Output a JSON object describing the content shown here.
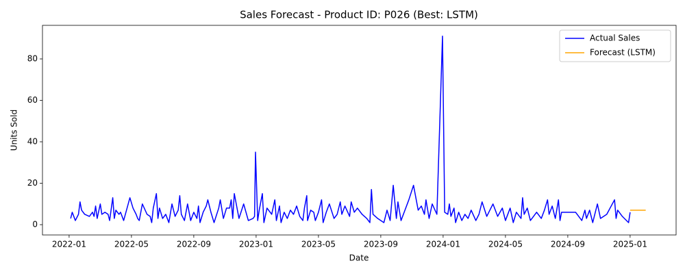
{
  "chart_data": {
    "type": "line",
    "title": "Sales Forecast - Product ID: P026 (Best: LSTM)",
    "xlabel": "Date",
    "ylabel": "Units Sold",
    "xlim": [
      -1.71,
      38.95
    ],
    "ylim": [
      -4.96,
      96.2
    ],
    "xticks": [
      {
        "value": 0,
        "label": "2022-01"
      },
      {
        "value": 4,
        "label": "2022-05"
      },
      {
        "value": 8,
        "label": "2022-09"
      },
      {
        "value": 12,
        "label": "2023-01"
      },
      {
        "value": 16,
        "label": "2023-05"
      },
      {
        "value": 20,
        "label": "2023-09"
      },
      {
        "value": 24,
        "label": "2024-01"
      },
      {
        "value": 28,
        "label": "2024-05"
      },
      {
        "value": 32,
        "label": "2024-09"
      },
      {
        "value": 36,
        "label": "2025-01"
      }
    ],
    "yticks": [
      0,
      20,
      40,
      60,
      80
    ],
    "legend": "upper right",
    "series": [
      {
        "name": "Actual Sales",
        "color": "#0000ff",
        "x": [
          0.1,
          0.2,
          0.4,
          0.6,
          0.7,
          0.8,
          1.0,
          1.3,
          1.5,
          1.6,
          1.7,
          1.8,
          2.0,
          2.1,
          2.3,
          2.5,
          2.6,
          2.8,
          2.9,
          3.0,
          3.2,
          3.3,
          3.5,
          3.9,
          4.1,
          4.3,
          4.4,
          4.5,
          4.7,
          5.0,
          5.2,
          5.3,
          5.4,
          5.6,
          5.7,
          5.8,
          6.0,
          6.2,
          6.4,
          6.6,
          6.8,
          7.0,
          7.1,
          7.2,
          7.4,
          7.6,
          7.8,
          8.0,
          8.2,
          8.3,
          8.4,
          8.6,
          8.8,
          8.9,
          9.1,
          9.3,
          9.6,
          9.7,
          9.9,
          10.1,
          10.3,
          10.4,
          10.5,
          10.6,
          10.9,
          11.2,
          11.5,
          11.8,
          11.9,
          11.96,
          12.1,
          12.2,
          12.4,
          12.5,
          12.7,
          13.0,
          13.2,
          13.3,
          13.5,
          13.6,
          13.8,
          14.0,
          14.2,
          14.4,
          14.6,
          14.8,
          15.0,
          15.1,
          15.25,
          15.3,
          15.5,
          15.7,
          15.8,
          16.0,
          16.2,
          16.3,
          16.5,
          16.7,
          17.0,
          17.2,
          17.4,
          17.5,
          17.7,
          18.0,
          18.1,
          18.3,
          18.5,
          18.8,
          19.1,
          19.3,
          19.4,
          19.5,
          19.8,
          20.2,
          20.4,
          20.6,
          20.8,
          21.0,
          21.1,
          21.3,
          21.5,
          21.8,
          22.1,
          22.4,
          22.6,
          22.8,
          22.9,
          23.1,
          23.3,
          23.6,
          23.96,
          24.1,
          24.3,
          24.4,
          24.5,
          24.7,
          24.8,
          25.0,
          25.2,
          25.4,
          25.6,
          25.8,
          26.1,
          26.3,
          26.5,
          26.8,
          27.0,
          27.2,
          27.5,
          27.8,
          28.0,
          28.3,
          28.5,
          28.7,
          29.0,
          29.1,
          29.2,
          29.4,
          29.6,
          29.8,
          30.0,
          30.3,
          30.5,
          30.7,
          30.8,
          31.0,
          31.2,
          31.4,
          31.5,
          31.6,
          31.8,
          32.5,
          32.9,
          33.1,
          33.2,
          33.4,
          33.6,
          33.9,
          34.1,
          34.5,
          35.0,
          35.1,
          35.2,
          35.5,
          35.9,
          36.0
        ],
        "values": [
          3,
          6,
          2,
          5,
          11,
          7,
          5,
          4,
          6,
          4,
          9,
          3,
          10,
          5,
          6,
          5,
          2,
          13,
          3,
          7,
          5,
          6,
          2,
          13,
          8,
          5,
          3,
          2,
          10,
          5,
          4,
          1,
          8,
          15,
          3,
          8,
          3,
          5,
          1,
          10,
          4,
          7,
          14,
          5,
          2,
          10,
          2,
          6,
          3,
          9,
          1,
          6,
          9,
          12,
          6,
          1,
          8,
          12,
          3,
          8,
          8,
          12,
          3,
          15,
          3,
          10,
          2,
          3,
          4,
          35,
          2,
          7,
          15,
          1,
          8,
          5,
          12,
          2,
          9,
          1,
          6,
          3,
          7,
          5,
          9,
          4,
          2,
          8,
          14,
          2,
          7,
          6,
          2,
          6,
          12,
          1,
          6,
          10,
          3,
          5,
          11,
          5,
          9,
          4,
          11,
          6,
          8,
          5,
          3,
          1,
          17,
          5,
          3,
          1,
          7,
          2,
          19,
          3,
          11,
          2,
          6,
          12,
          19,
          7,
          9,
          5,
          12,
          3,
          10,
          5,
          91,
          6,
          5,
          10,
          4,
          8,
          1,
          6,
          2,
          5,
          3,
          7,
          2,
          5,
          11,
          4,
          7,
          10,
          4,
          8,
          2,
          8,
          1,
          6,
          3,
          13,
          5,
          8,
          2,
          4,
          6,
          3,
          7,
          12,
          5,
          9,
          3,
          12,
          2,
          6,
          6,
          6,
          2,
          7,
          3,
          7,
          1,
          10,
          3,
          5,
          12,
          3,
          7,
          4,
          1,
          6
        ]
      },
      {
        "name": "Forecast (LSTM)",
        "color": "#ffa500",
        "x": [
          36.0,
          36.5,
          37.0
        ],
        "values": [
          7,
          7,
          7
        ]
      }
    ]
  }
}
